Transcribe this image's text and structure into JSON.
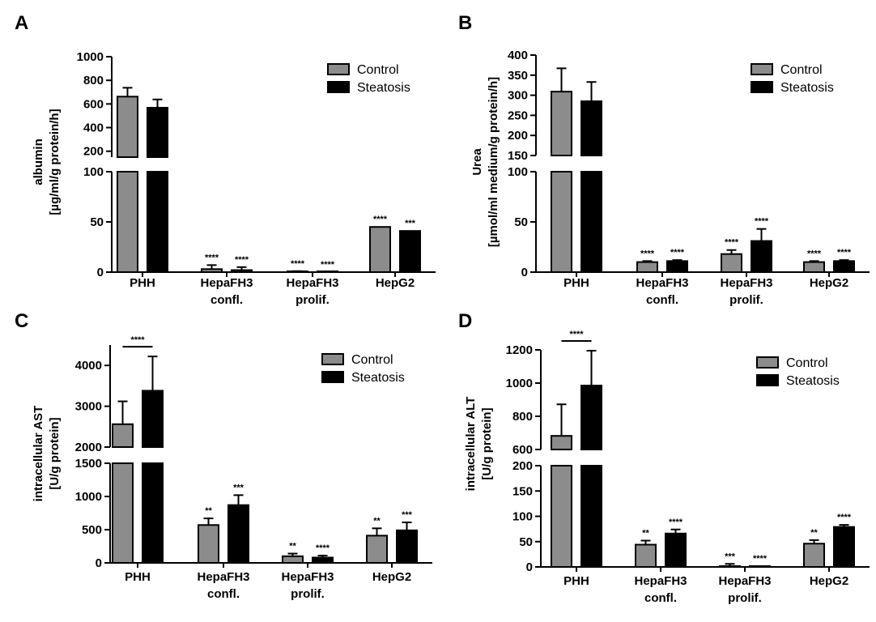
{
  "colors": {
    "control": "#8c8c8c",
    "steatosis": "#000000",
    "axis": "#000000"
  },
  "legend": {
    "control": "Control",
    "steatosis": "Steatosis"
  },
  "chart_data": [
    {
      "type": "bar",
      "panel": "A",
      "ylabel": [
        "albumin",
        "[µg/ml/g protein/h]"
      ],
      "categories": [
        [
          "PHH"
        ],
        [
          "HepaFH3",
          "confl."
        ],
        [
          "HepaFH3",
          "prolif."
        ],
        [
          "HepG2"
        ]
      ],
      "series": [
        {
          "name": "Control",
          "values": [
            662,
            3,
            0.5,
            45
          ],
          "errors": [
            75,
            4,
            0.5,
            0
          ],
          "sig": [
            "",
            "****",
            "****",
            "****"
          ]
        },
        {
          "name": "Steatosis",
          "values": [
            568,
            2,
            0,
            41
          ],
          "errors": [
            70,
            3,
            0,
            0
          ],
          "sig": [
            "",
            "****",
            "****",
            "***"
          ]
        }
      ],
      "axis": {
        "lower": {
          "range": [
            0,
            100
          ],
          "ticks": [
            0,
            50,
            100
          ]
        },
        "upper": {
          "range": [
            150,
            1000
          ],
          "ticks": [
            200,
            400,
            600,
            800,
            1000
          ]
        }
      },
      "bracket": null
    },
    {
      "type": "bar",
      "panel": "B",
      "ylabel": [
        "Urea",
        "[µmol/ml medium/g protein/h]"
      ],
      "categories": [
        [
          "PHH"
        ],
        [
          "HepaFH3",
          "confl."
        ],
        [
          "HepaFH3",
          "prolif."
        ],
        [
          "HepG2"
        ]
      ],
      "series": [
        {
          "name": "Control",
          "values": [
            309,
            10,
            18,
            10
          ],
          "errors": [
            58,
            1,
            4,
            1
          ],
          "sig": [
            "",
            "****",
            "****",
            "****"
          ]
        },
        {
          "name": "Steatosis",
          "values": [
            285,
            11,
            31,
            11
          ],
          "errors": [
            48,
            1,
            12,
            1
          ],
          "sig": [
            "",
            "****",
            "****",
            "****"
          ]
        }
      ],
      "axis": {
        "lower": {
          "range": [
            0,
            100
          ],
          "ticks": [
            0,
            50,
            100
          ]
        },
        "upper": {
          "range": [
            150,
            400
          ],
          "ticks": [
            150,
            200,
            250,
            300,
            350,
            400
          ]
        }
      },
      "bracket": null
    },
    {
      "type": "bar",
      "panel": "C",
      "ylabel": [
        "intracellular AST",
        "[U/g protein]"
      ],
      "categories": [
        [
          "PHH"
        ],
        [
          "HepaFH3",
          "confl."
        ],
        [
          "HepaFH3",
          "prolif."
        ],
        [
          "HepG2"
        ]
      ],
      "series": [
        {
          "name": "Control",
          "values": [
            2560,
            570,
            100,
            410
          ],
          "errors": [
            560,
            100,
            40,
            110
          ],
          "sig": [
            "",
            "**",
            "**",
            "**"
          ]
        },
        {
          "name": "Steatosis",
          "values": [
            3380,
            870,
            80,
            490
          ],
          "errors": [
            840,
            150,
            30,
            120
          ],
          "sig": [
            "",
            "***",
            "****",
            "***"
          ]
        }
      ],
      "axis": {
        "lower": {
          "range": [
            0,
            1500
          ],
          "ticks": [
            0,
            500,
            1000,
            1500
          ]
        },
        "upper": {
          "range": [
            2000,
            4500
          ],
          "ticks": [
            2000,
            3000,
            4000
          ]
        }
      },
      "bracket": {
        "label": "****"
      }
    },
    {
      "type": "bar",
      "panel": "D",
      "ylabel": [
        "intracellular ALT",
        "[U/g protein]"
      ],
      "categories": [
        [
          "PHH"
        ],
        [
          "HepaFH3",
          "confl."
        ],
        [
          "HepaFH3",
          "prolif."
        ],
        [
          "HepG2"
        ]
      ],
      "series": [
        {
          "name": "Control",
          "values": [
            682,
            44,
            1,
            46
          ],
          "errors": [
            190,
            8,
            5,
            7
          ],
          "sig": [
            "",
            "**",
            "***",
            "**"
          ]
        },
        {
          "name": "Steatosis",
          "values": [
            985,
            66,
            0.5,
            79
          ],
          "errors": [
            210,
            8,
            1,
            4
          ],
          "sig": [
            "",
            "****",
            "****",
            "****"
          ]
        }
      ],
      "axis": {
        "lower": {
          "range": [
            0,
            200
          ],
          "ticks": [
            0,
            50,
            100,
            150,
            200
          ]
        },
        "upper": {
          "range": [
            600,
            1200
          ],
          "ticks": [
            600,
            800,
            1000,
            1200
          ]
        }
      },
      "bracket": {
        "label": "****"
      }
    }
  ]
}
